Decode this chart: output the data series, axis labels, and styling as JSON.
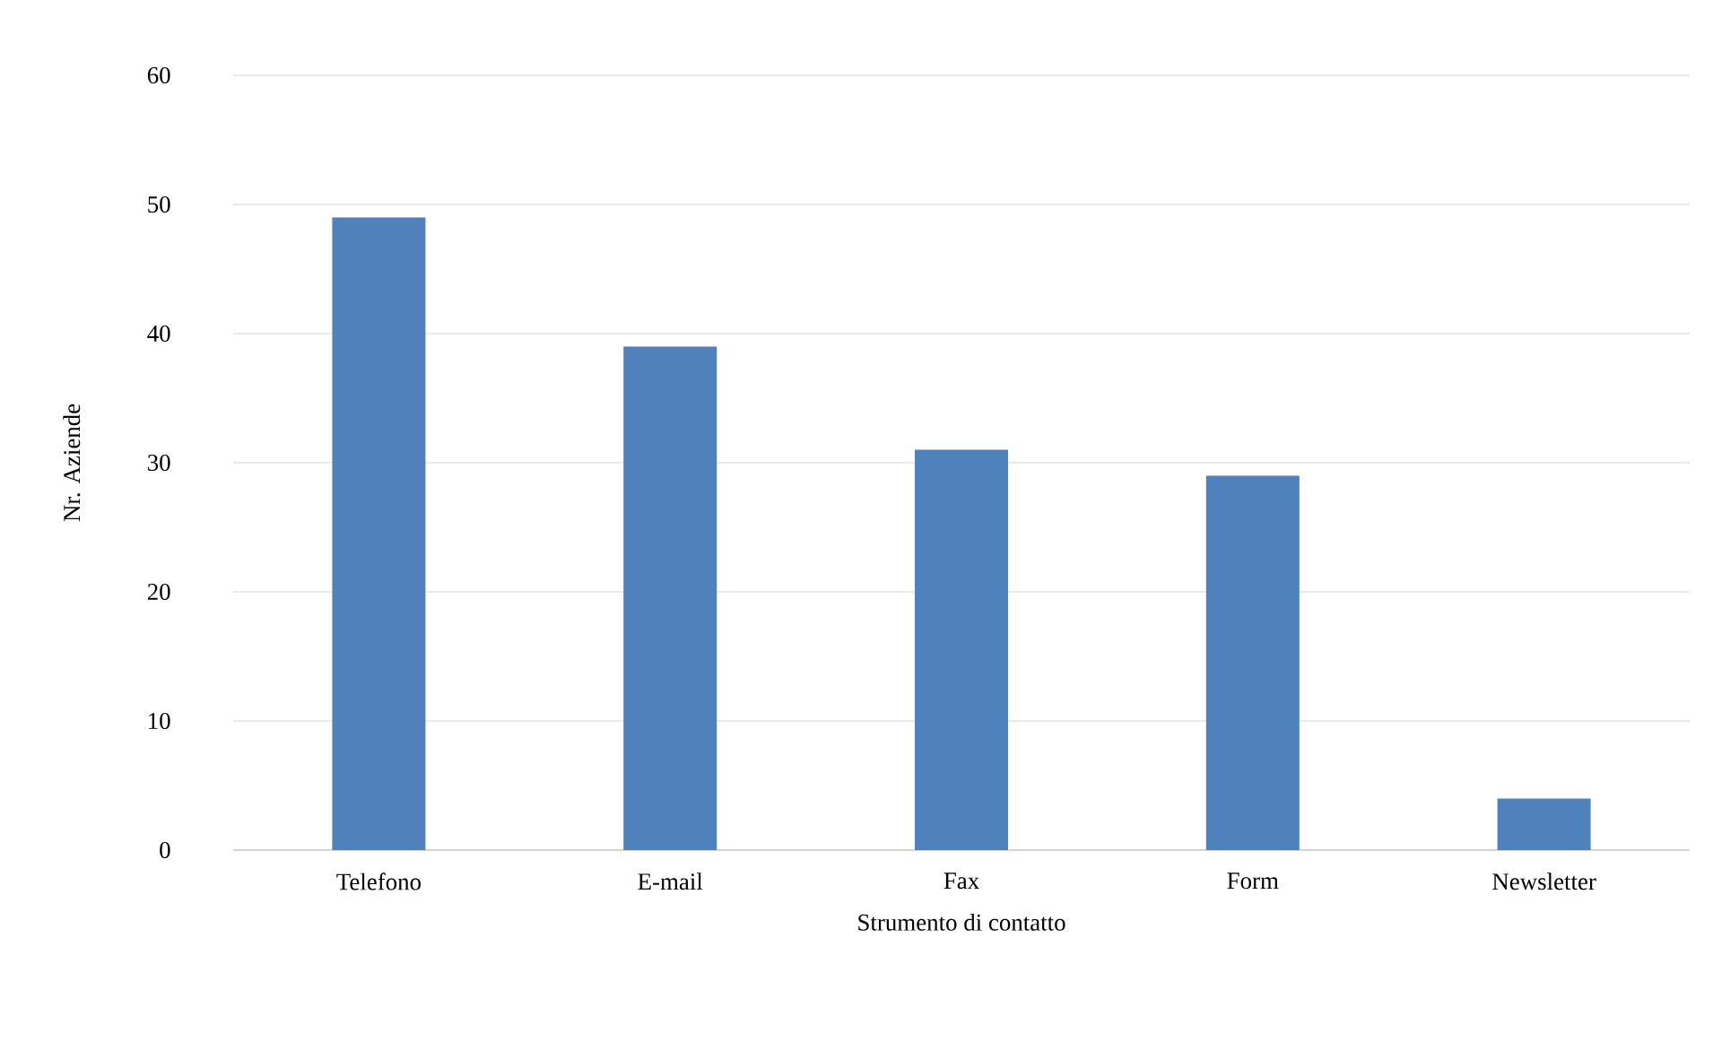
{
  "chart_data": {
    "type": "bar",
    "xlabel": "Strumento  di contatto",
    "ylabel": "Nr. Aziende",
    "categories": [
      "Telefono",
      "E-mail",
      "Fax",
      "Form",
      "Newsletter"
    ],
    "values": [
      49,
      39,
      31,
      29,
      4
    ],
    "color": "#4f81bd",
    "ylim": [
      0,
      60
    ],
    "yticks": [
      0,
      10,
      20,
      30,
      40,
      50,
      60
    ],
    "grid": "y"
  }
}
